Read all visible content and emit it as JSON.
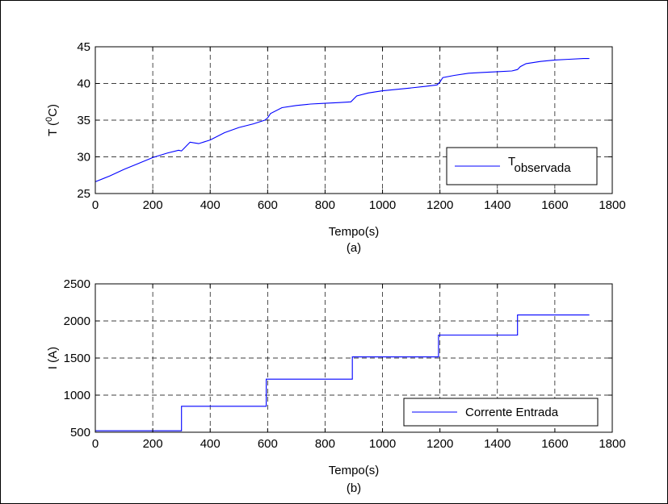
{
  "chart_data": [
    {
      "type": "line",
      "subtitle": "(a)",
      "xlabel": "Tempo(s)",
      "ylabel": "T (",
      "ylabel_sup": "0",
      "ylabel_end": "C)",
      "xlim": [
        0,
        1800
      ],
      "ylim": [
        25,
        45
      ],
      "xticks": [
        0,
        200,
        400,
        600,
        800,
        1000,
        1200,
        1400,
        1600,
        1800
      ],
      "yticks": [
        25,
        30,
        35,
        40,
        45
      ],
      "grid": true,
      "legend_position": "bottom-right",
      "series": [
        {
          "name": "T",
          "name_sub": "observada",
          "color": "#0000ff",
          "x": [
            0,
            50,
            100,
            150,
            200,
            250,
            290,
            300,
            310,
            330,
            360,
            400,
            450,
            500,
            550,
            590,
            600,
            610,
            650,
            700,
            750,
            800,
            850,
            890,
            900,
            910,
            950,
            1000,
            1050,
            1100,
            1150,
            1190,
            1200,
            1210,
            1250,
            1300,
            1350,
            1400,
            1450,
            1470,
            1480,
            1500,
            1550,
            1600,
            1650,
            1700,
            1720
          ],
          "y": [
            26.6,
            27.4,
            28.3,
            29.1,
            29.9,
            30.5,
            30.9,
            30.8,
            31.2,
            32.0,
            31.8,
            32.3,
            33.3,
            34.0,
            34.5,
            35.0,
            35.3,
            35.9,
            36.7,
            37.0,
            37.2,
            37.3,
            37.4,
            37.5,
            37.9,
            38.3,
            38.7,
            39.0,
            39.2,
            39.4,
            39.6,
            39.8,
            40.2,
            40.8,
            41.1,
            41.4,
            41.5,
            41.6,
            41.7,
            41.9,
            42.3,
            42.7,
            43.0,
            43.2,
            43.3,
            43.4,
            43.4
          ]
        }
      ]
    },
    {
      "type": "line",
      "subtitle": "(b)",
      "xlabel": "Tempo(s)",
      "ylabel": "I (A)",
      "xlim": [
        0,
        1800
      ],
      "ylim": [
        500,
        2500
      ],
      "xticks": [
        0,
        200,
        400,
        600,
        800,
        1000,
        1200,
        1400,
        1600,
        1800
      ],
      "yticks": [
        500,
        1000,
        1500,
        2000,
        2500
      ],
      "grid": true,
      "legend_position": "bottom-right",
      "series": [
        {
          "name": "Corrente Entrada",
          "color": "#0000ff",
          "x": [
            0,
            300,
            300,
            595,
            595,
            895,
            895,
            1195,
            1195,
            1470,
            1470,
            1720
          ],
          "y": [
            520,
            520,
            850,
            850,
            1215,
            1215,
            1515,
            1515,
            1810,
            1810,
            2080,
            2080
          ]
        }
      ]
    }
  ]
}
